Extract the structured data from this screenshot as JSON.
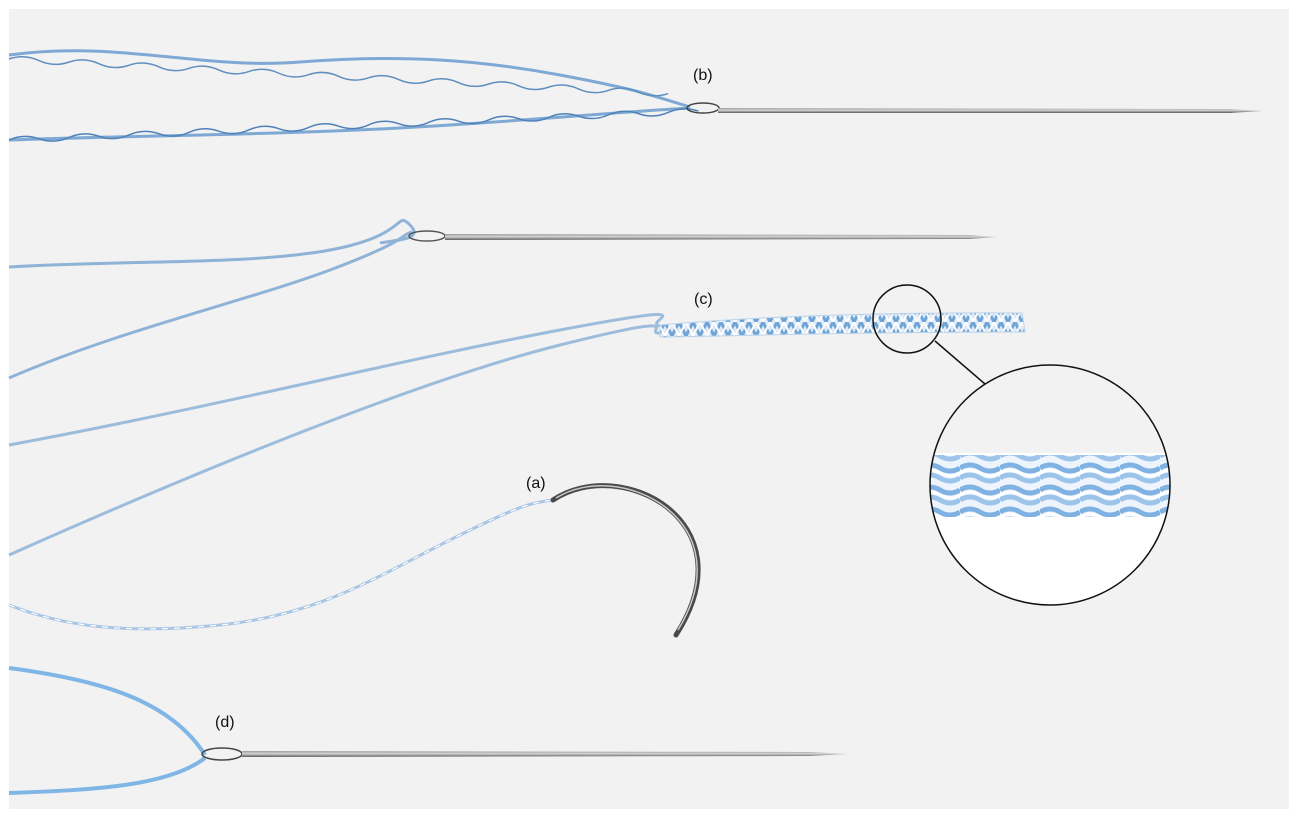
{
  "labels": {
    "a": "(a)",
    "b": "(b)",
    "c": "(c)",
    "d": "(d)"
  },
  "colors": {
    "background": "#f2f2f2",
    "suture_blue": "#8fb3d6",
    "suture_blue_dark": "#5f8fbf",
    "suture_light": "#cfe0f0",
    "needle_steel": "#6d6d6d",
    "needle_highlight": "#b8b8b8",
    "magnifier_outline": "#111111"
  }
}
